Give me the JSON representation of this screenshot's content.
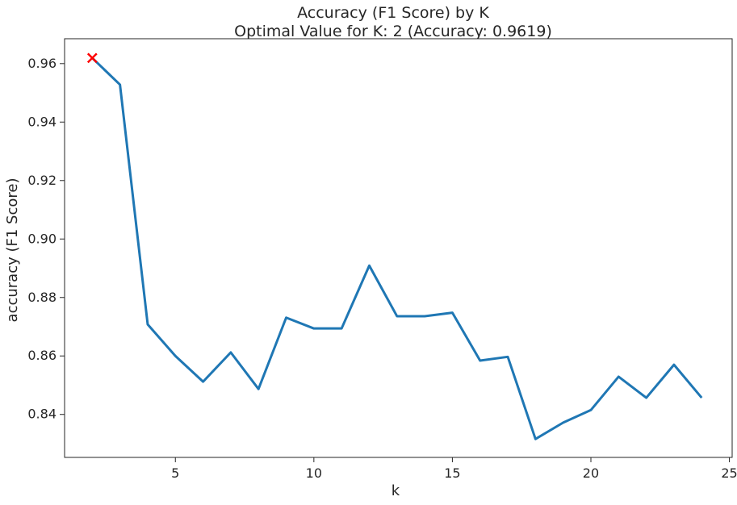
{
  "chart_data": {
    "type": "line",
    "title": "Accuracy (F1 Score) by K",
    "subtitle": "Optimal Value for K: 2 (Accuracy: 0.9619)",
    "xlabel": "k",
    "ylabel": "accuracy (F1 Score)",
    "xlim": [
      1.0,
      25.1
    ],
    "ylim": [
      0.8253,
      0.9685
    ],
    "x_ticks": [
      5,
      10,
      15,
      20,
      25
    ],
    "y_ticks": [
      0.84,
      0.86,
      0.88,
      0.9,
      0.92,
      0.94,
      0.96
    ],
    "y_tick_labels": [
      "0.84",
      "0.86",
      "0.88",
      "0.90",
      "0.92",
      "0.94",
      "0.96"
    ],
    "grid": false,
    "series": [
      {
        "color": "#1f77b4",
        "x": [
          2,
          3,
          4,
          5,
          6,
          7,
          8,
          9,
          10,
          11,
          12,
          13,
          14,
          15,
          16,
          17,
          18,
          19,
          20,
          21,
          22,
          23,
          24
        ],
        "y": [
          0.9619,
          0.9528,
          0.8708,
          0.86,
          0.8512,
          0.8612,
          0.8487,
          0.8731,
          0.8694,
          0.8694,
          0.8909,
          0.8736,
          0.8736,
          0.8748,
          0.8584,
          0.8597,
          0.8316,
          0.8372,
          0.8415,
          0.8529,
          0.8457,
          0.857,
          0.8457
        ]
      }
    ],
    "optimal_marker": {
      "x": 2,
      "y": 0.9619,
      "symbol": "x",
      "color": "#ff0000"
    }
  }
}
